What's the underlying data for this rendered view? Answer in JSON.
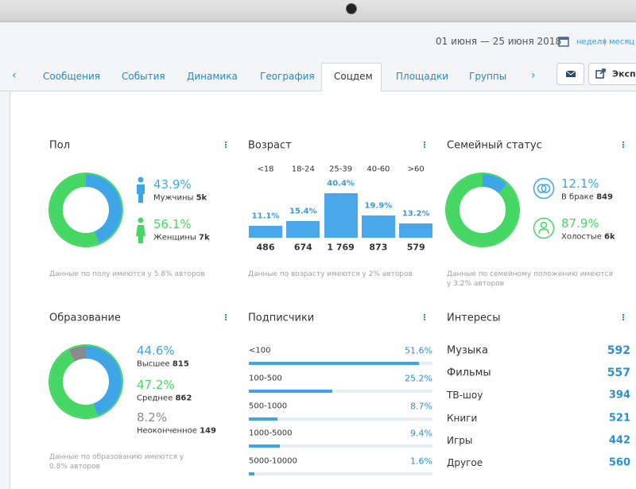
{
  "header": {
    "date_range": "01 июня — 25 июня 2018",
    "period_options": [
      "неделя",
      "месяц"
    ]
  },
  "tabs": [
    "Сообщения",
    "События",
    "Динамика",
    "География",
    "Соцдем",
    "Площадки",
    "Группы"
  ],
  "active_tab": "Соцдем",
  "export_button": "Экспорт",
  "gender": {
    "title": "Пол",
    "segments": [
      {
        "percent": {
          "value": 43.9,
          "label": "43.9%"
        },
        "name": "Мужчины",
        "count": {
          "value": 5000,
          "label": "5k"
        },
        "color": "#3ea6e6"
      },
      {
        "percent": {
          "value": 56.1,
          "label": "56.1%"
        },
        "name": "Женщины",
        "count": {
          "value": 7000,
          "label": "7k"
        },
        "color": "#46d663"
      }
    ],
    "note": "Данные по полу имеются у 5.8% авторов"
  },
  "age": {
    "title": "Возраст",
    "color": "#4aa8ea",
    "groups": [
      {
        "name": "<18",
        "percent": {
          "value": 11.1,
          "label": "11.1%"
        },
        "count": 486
      },
      {
        "name": "18-24",
        "percent": {
          "value": 15.4,
          "label": "15.4%"
        },
        "count": 674
      },
      {
        "name": "25-39",
        "percent": {
          "value": 40.4,
          "label": "40.4%"
        },
        "count": {
          "value": 1769,
          "label": "1 769"
        }
      },
      {
        "name": "40-60",
        "percent": {
          "value": 19.9,
          "label": "19.9%"
        },
        "count": 873
      },
      {
        "name": ">60",
        "percent": {
          "value": 13.2,
          "label": "13.2%"
        },
        "count": 579
      }
    ],
    "note": "Данные по возрасту имеются у 2% авторов"
  },
  "family": {
    "title": "Семейный статус",
    "segments": [
      {
        "percent": {
          "value": 12.1,
          "label": "12.1%"
        },
        "name": "В браке",
        "count": 849,
        "color": "#3ea6e6"
      },
      {
        "percent": {
          "value": 87.9,
          "label": "87.9%"
        },
        "name": "Холостые",
        "count": {
          "value": 6000,
          "label": "6k"
        },
        "color": "#46d663"
      }
    ],
    "note": "Данные по семейному положению имеются у 3.2% авторов"
  },
  "education": {
    "title": "Образование",
    "segments": [
      {
        "percent": {
          "value": 44.6,
          "label": "44.6%"
        },
        "name": "Высшее",
        "count": 815,
        "color": "#3ea6e6"
      },
      {
        "percent": {
          "value": 47.2,
          "label": "47.2%"
        },
        "name": "Среднее",
        "count": 862,
        "color": "#46d663"
      },
      {
        "percent": {
          "value": 8.2,
          "label": "8.2%"
        },
        "name": "Неоконченное",
        "count": 149,
        "color": "#8a8a8a"
      }
    ],
    "note": "Данные по образованию имеются у 0.8% авторов"
  },
  "subscribers": {
    "title": "Подписчики",
    "color": "#3ea6e6",
    "rows": [
      {
        "name": "<100",
        "percent": {
          "value": 51.6,
          "label": "51.6%"
        }
      },
      {
        "name": "100-500",
        "percent": {
          "value": 25.2,
          "label": "25.2%"
        }
      },
      {
        "name": "500-1000",
        "percent": {
          "value": 8.7,
          "label": "8.7%"
        }
      },
      {
        "name": "1000-5000",
        "percent": {
          "value": 9.4,
          "label": "9.4%"
        }
      },
      {
        "name": "5000-10000",
        "percent": {
          "value": 1.6,
          "label": "1.6%"
        }
      }
    ]
  },
  "interests": {
    "title": "Интересы",
    "rows": [
      {
        "name": "Музыка",
        "count": 592
      },
      {
        "name": "Фильмы",
        "count": 557
      },
      {
        "name": "ТВ-шоу",
        "count": 394
      },
      {
        "name": "Книги",
        "count": 521
      },
      {
        "name": "Игры",
        "count": 442
      },
      {
        "name": "Другое",
        "count": 560
      }
    ]
  }
}
